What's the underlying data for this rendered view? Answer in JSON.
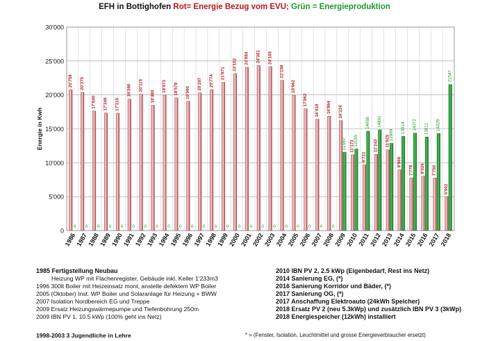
{
  "title": {
    "part1": "EFH in Bottighofen ",
    "part2": "Rot= Energie Bezug vom EVU; ",
    "part3": "Grün = Energieproduktion",
    "color_red": "#c0131b",
    "color_green": "#1a9a2a"
  },
  "chart_data": {
    "type": "bar",
    "title": "EFH in Bottighofen Rot= Energie Bezug vom EVU; Grün = Energieproduktion",
    "ylabel": "Energie in Kwh",
    "xlabel": "",
    "ylim": [
      0,
      30000
    ],
    "yticks": [
      0,
      5000,
      10000,
      15000,
      20000,
      25000,
      30000
    ],
    "ytick_labels": [
      "0",
      "5'000",
      "10'000",
      "15'000",
      "20'000",
      "25'000",
      "30'000"
    ],
    "grid": true,
    "categories": [
      "1986",
      "1987",
      "1988",
      "1989",
      "1990",
      "1991",
      "1992",
      "1993",
      "1994",
      "1995",
      "1996",
      "1997",
      "1998",
      "1999",
      "2000",
      "2001",
      "2002",
      "2003",
      "2004",
      "2005",
      "2006",
      "2007",
      "2008",
      "2009",
      "2010",
      "2011",
      "2012",
      "2013",
      "2014",
      "2015",
      "2016",
      "2017",
      "2018"
    ],
    "series": [
      {
        "color": "#b5474c",
        "values": [
          20758,
          20375,
          17640,
          17349,
          17310,
          19396,
          20115,
          18480,
          19973,
          19578,
          19060,
          20297,
          20774,
          21871,
          23152,
          24084,
          24361,
          24165,
          22158,
          19962,
          17962,
          16419,
          16864,
          16224,
          11173,
          9721,
          11243,
          11925,
          8969,
          7778,
          8026,
          7750,
          5002
        ],
        "labels": [
          "20'758",
          "20'375",
          "17'640",
          "17'349",
          "17'310",
          "19'396",
          "20'115",
          "18'480",
          "19'973",
          "19'578",
          "19'060",
          "20'297",
          "20'774",
          "21'871",
          "23'152",
          "24'084",
          "24'361",
          "24'165",
          "22'158",
          "19'962",
          "17'962",
          "16'419",
          "16'864",
          "16'224",
          "11'173",
          "9'721",
          "11'243",
          "11'925",
          "8'969",
          "7'778",
          "8'026",
          "7'750",
          "5'002"
        ]
      },
      {
        "color": "#1a9a2a",
        "values": [
          0,
          0,
          0,
          0,
          0,
          0,
          0,
          0,
          0,
          0,
          0,
          0,
          0,
          0,
          0,
          0,
          0,
          0,
          0,
          0,
          0,
          0,
          0,
          11560,
          12035,
          14658,
          14861,
          12869,
          13914,
          14372,
          13811,
          14329,
          21547
        ],
        "labels": [
          "0",
          "0",
          "0",
          "0",
          "0",
          "0",
          "0",
          "0",
          "0",
          "0",
          "0",
          "0",
          "0",
          "0",
          "0",
          "0",
          "0",
          "0",
          "0",
          "0",
          "0",
          "0",
          "0",
          "11560",
          "12035",
          "14658",
          "14861",
          "12869",
          "13914",
          "14372",
          "13811",
          "14329",
          "21547"
        ]
      }
    ]
  },
  "notes_left": [
    {
      "text": "1985 Fertigstellung Neubau",
      "bold": true
    },
    {
      "text": "Heizung WP mit Flachenregister, Gebäude inkl. Keller 1'233m3",
      "bold": false,
      "indent": true
    },
    {
      "text": "1996 300lt Boiler mit Heizeinsatz mont, anstelle defektem WP Boiler",
      "bold": false
    },
    {
      "text": "2005 (Oktober) Inst. WP Boiler und Solaranlage für Heizung + BWW",
      "bold": false
    },
    {
      "text": "2007 Isolation Nordbereich EG und Treppe",
      "bold": false
    },
    {
      "text": "2009 Ersatz Heizungswärmepumpe und Tiefenbohrung 250m",
      "bold": false
    },
    {
      "text": "2009 IBN PV 1, 10.5 kWp (100% geht ins Netz)",
      "bold": false
    }
  ],
  "note_lehre": "1998-2003 3 Jugendliche in Lehre",
  "notes_right": [
    "2010 IBN PV 2, 2.5 kWp (Eigenbedarf, Rest ins Netz)",
    "2014 Sanierung EG, (*)",
    "2016 Sanierung  Korridor und Bäder, (*)",
    "2017 Sanierung OG, (*)",
    "2017 Anschaffung Elektroauto (24kWh Speicher)",
    "2018 Ersatz PV 2 (neu 5.3kWp) und zusätzlich IBN PV 3 (3kWp)",
    "2018 Energiespeicher (12kWh) installiert"
  ],
  "footnote": "* = (Fenster, Isolation, Leuchtmittel und grosse Energieverbraucher ersetzt)"
}
